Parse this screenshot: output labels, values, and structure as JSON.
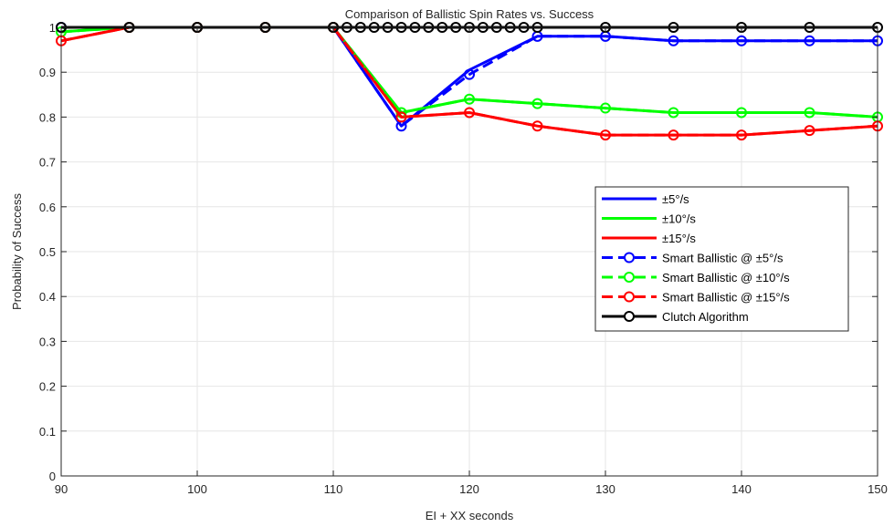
{
  "chart_data": {
    "type": "line",
    "title": "Comparison of Ballistic Spin Rates vs. Success",
    "xlabel": "EI + XX seconds",
    "ylabel": "Probability of Success",
    "xlim": [
      90,
      150
    ],
    "ylim": [
      0,
      1
    ],
    "xticks": [
      "90",
      "100",
      "110",
      "120",
      "130",
      "140",
      "150"
    ],
    "yticks": [
      "0",
      "0.1",
      "0.2",
      "0.3",
      "0.4",
      "0.5",
      "0.6",
      "0.7",
      "0.8",
      "0.9",
      "1"
    ],
    "grid": true,
    "legend_position": "right",
    "series": [
      {
        "name": "±5°/s",
        "color": "#0000ff",
        "style": "solid",
        "markers": false,
        "x": [
          90,
          95,
          100,
          105,
          110,
          115,
          120,
          125,
          130,
          135,
          140,
          145,
          150
        ],
        "y": [
          1.0,
          1.0,
          1.0,
          1.0,
          1.0,
          0.78,
          0.905,
          0.98,
          0.98,
          0.97,
          0.97,
          0.97,
          0.97
        ]
      },
      {
        "name": "±10°/s",
        "color": "#00ff00",
        "style": "solid",
        "markers": false,
        "x": [
          90,
          95,
          100,
          105,
          110,
          115,
          120,
          125,
          130,
          135,
          140,
          145,
          150
        ],
        "y": [
          0.99,
          1.0,
          1.0,
          1.0,
          1.0,
          0.81,
          0.84,
          0.83,
          0.82,
          0.81,
          0.81,
          0.81,
          0.8
        ]
      },
      {
        "name": "±15°/s",
        "color": "#ff0000",
        "style": "solid",
        "markers": false,
        "x": [
          90,
          95,
          100,
          105,
          110,
          115,
          120,
          125,
          130,
          135,
          140,
          145,
          150
        ],
        "y": [
          0.97,
          1.0,
          1.0,
          1.0,
          1.0,
          0.8,
          0.81,
          0.78,
          0.76,
          0.76,
          0.76,
          0.77,
          0.78
        ]
      },
      {
        "name": "Smart Ballistic @ ±5°/s",
        "color": "#0000ff",
        "style": "dashed",
        "markers": true,
        "x": [
          90,
          95,
          100,
          105,
          110,
          115,
          120,
          125,
          130,
          135,
          140,
          145,
          150
        ],
        "y": [
          1.0,
          1.0,
          1.0,
          1.0,
          1.0,
          0.78,
          0.895,
          0.98,
          0.98,
          0.97,
          0.97,
          0.97,
          0.97
        ]
      },
      {
        "name": "Smart Ballistic @ ±10°/s",
        "color": "#00ff00",
        "style": "dashed",
        "markers": true,
        "x": [
          90,
          95,
          100,
          105,
          110,
          115,
          120,
          125,
          130,
          135,
          140,
          145,
          150
        ],
        "y": [
          0.99,
          1.0,
          1.0,
          1.0,
          1.0,
          0.81,
          0.84,
          0.83,
          0.82,
          0.81,
          0.81,
          0.81,
          0.8
        ]
      },
      {
        "name": "Smart Ballistic @ ±15°/s",
        "color": "#ff0000",
        "style": "dashed",
        "markers": true,
        "x": [
          90,
          95,
          100,
          105,
          110,
          115,
          120,
          125,
          130,
          135,
          140,
          145,
          150
        ],
        "y": [
          0.97,
          1.0,
          1.0,
          1.0,
          1.0,
          0.8,
          0.81,
          0.78,
          0.76,
          0.76,
          0.76,
          0.77,
          0.78
        ]
      },
      {
        "name": "Clutch Algorithm",
        "color": "#000000",
        "style": "solid",
        "markers": true,
        "x": [
          90,
          95,
          100,
          105,
          110,
          111,
          112,
          113,
          114,
          115,
          116,
          117,
          118,
          119,
          120,
          121,
          122,
          123,
          124,
          125,
          130,
          135,
          140,
          145,
          150
        ],
        "y": [
          1,
          1,
          1,
          1,
          1,
          1,
          1,
          1,
          1,
          1,
          1,
          1,
          1,
          1,
          1,
          1,
          1,
          1,
          1,
          1,
          1,
          1,
          1,
          1,
          1
        ]
      }
    ]
  }
}
